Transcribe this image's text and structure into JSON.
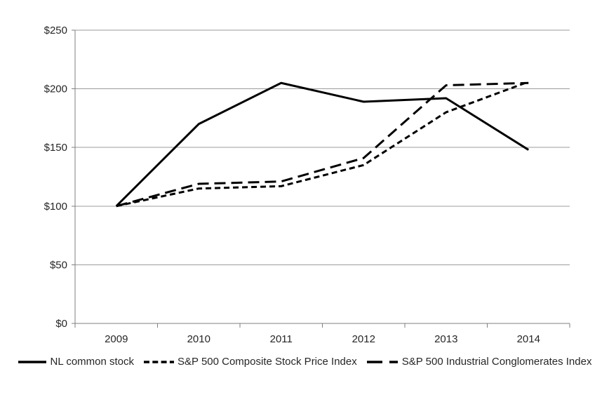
{
  "chart_data": {
    "type": "line",
    "title": "",
    "xlabel": "",
    "ylabel": "",
    "x_labels": [
      "2009",
      "2010",
      "2011",
      "2012",
      "2013",
      "2014"
    ],
    "y_tick_values": [
      0,
      50,
      100,
      150,
      200,
      250
    ],
    "y_tick_labels": [
      "$0",
      "$50",
      "$100",
      "$150",
      "$200",
      "$250"
    ],
    "ylim": [
      0,
      250
    ],
    "grid": true,
    "legend_position": "bottom",
    "colors": {
      "series": "#000000",
      "gridline": "#9b9b9b",
      "axis": "#7f7f7f",
      "text": "#262626",
      "background": "#ffffff"
    },
    "series": [
      {
        "name": "NL common stock",
        "line_style": "solid",
        "values": [
          100,
          170,
          205,
          189,
          192,
          148
        ]
      },
      {
        "name": "S&P 500 Composite Stock Price Index",
        "line_style": "short-dash",
        "values": [
          100,
          115,
          117,
          135,
          180,
          206
        ]
      },
      {
        "name": "S&P 500 Industrial Conglomerates Index",
        "line_style": "long-dash",
        "values": [
          100,
          119,
          121,
          141,
          203,
          205
        ]
      }
    ]
  }
}
